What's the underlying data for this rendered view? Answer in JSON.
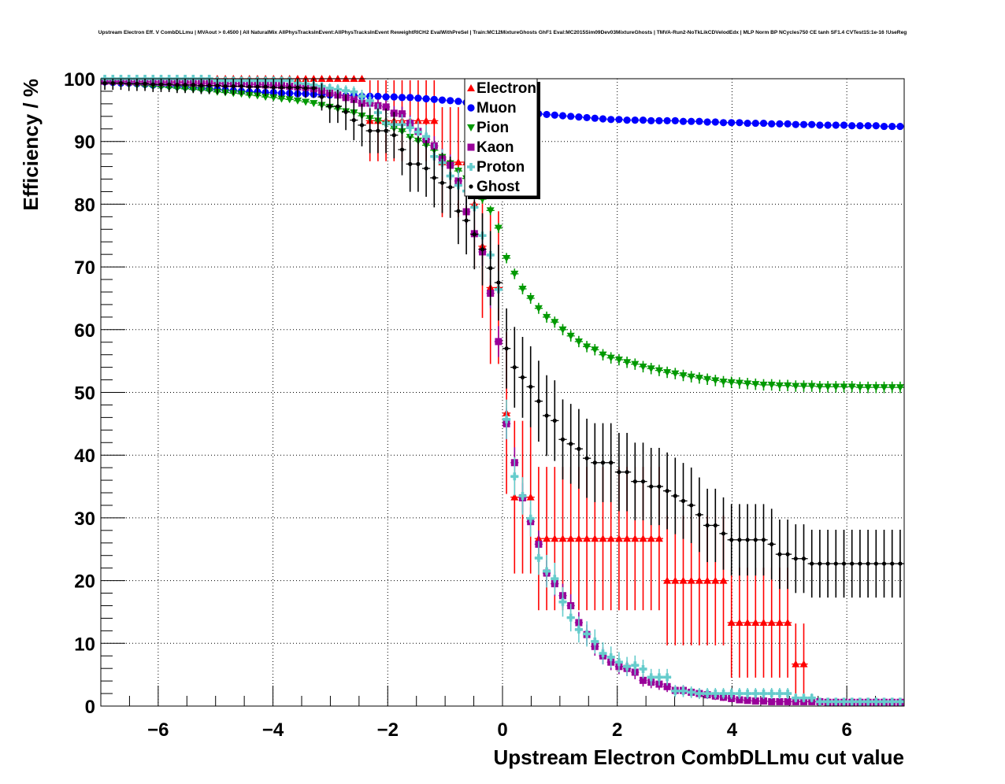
{
  "chart_data": {
    "type": "scatter",
    "title": "Upstream Electron Eff. V CombDLLmu | MVAout > 0.4500 | All NaturalMix AllPhysTracksInEvent:AllPhysTracksInEvent ReweightRICH2 EvalWithPreSel | Train:MC12MixtureGhosts GhF1 Eval:MC2015Sim09Dev03MixtureGhosts | TMVA-Run2-NoTkLikCDVelodEdx | MLP Norm BP NCycles750 CE tanh SF1.4 CVTest15:1e-16 !UseReg",
    "xlabel": "Upstream Electron CombDLLmu cut value",
    "ylabel": "Efficiency / %",
    "xlim": [
      -7,
      7
    ],
    "ylim": [
      0,
      100
    ],
    "x_bins": {
      "start": -7,
      "width": 0.14,
      "count": 100
    },
    "xticks": [
      {
        "v": -6,
        "label": "−6"
      },
      {
        "v": -4,
        "label": "−4"
      },
      {
        "v": -2,
        "label": "−2"
      },
      {
        "v": 0,
        "label": "0"
      },
      {
        "v": 2,
        "label": "2"
      },
      {
        "v": 4,
        "label": "4"
      },
      {
        "v": 6,
        "label": "6"
      }
    ],
    "yticks": [
      {
        "v": 0,
        "label": "0"
      },
      {
        "v": 10,
        "label": "10"
      },
      {
        "v": 20,
        "label": "20"
      },
      {
        "v": 30,
        "label": "30"
      },
      {
        "v": 40,
        "label": "40"
      },
      {
        "v": 50,
        "label": "50"
      },
      {
        "v": 60,
        "label": "60"
      },
      {
        "v": 70,
        "label": "70"
      },
      {
        "v": 80,
        "label": "80"
      },
      {
        "v": 90,
        "label": "90"
      },
      {
        "v": 100,
        "label": "100"
      }
    ],
    "grid": true,
    "legend_position": "top-center",
    "series": [
      {
        "name": "Electron",
        "color": "#ff0000",
        "marker": "triangle-up",
        "values": [
          100,
          100,
          100,
          100,
          100,
          100,
          100,
          100,
          100,
          100,
          100,
          100,
          100,
          100,
          100,
          100,
          100,
          100,
          100,
          100,
          100,
          100,
          100,
          100,
          100,
          100,
          100,
          100,
          100,
          100,
          100,
          100,
          100,
          93.3,
          93.3,
          93.3,
          93.3,
          93.3,
          93.3,
          93.3,
          93.3,
          93.3,
          86.7,
          86.7,
          86.7,
          86.7,
          80,
          73.3,
          66.7,
          66.7,
          46.7,
          33.3,
          33.3,
          33.3,
          26.7,
          26.7,
          26.7,
          26.7,
          26.7,
          26.7,
          26.7,
          26.7,
          26.7,
          26.7,
          26.7,
          26.7,
          26.7,
          26.7,
          26.7,
          26.7,
          20,
          20,
          20,
          20,
          20,
          20,
          20,
          20,
          13.3,
          13.3,
          13.3,
          13.3,
          13.3,
          13.3,
          13.3,
          13.3,
          6.7,
          6.7,
          null,
          null,
          null,
          null,
          null,
          null,
          null,
          null,
          null,
          null,
          null,
          null
        ]
      },
      {
        "name": "Muon",
        "color": "#0000ff",
        "marker": "circle",
        "values": [
          99.5,
          99.4,
          99.3,
          99.3,
          99.2,
          99.1,
          99.0,
          99.0,
          98.9,
          98.8,
          98.7,
          98.6,
          98.5,
          98.4,
          98.3,
          98.2,
          98.1,
          98.0,
          97.9,
          97.9,
          97.8,
          97.8,
          97.7,
          97.7,
          97.6,
          97.6,
          97.5,
          97.5,
          97.4,
          97.4,
          97.3,
          97.3,
          97.2,
          97.2,
          97.2,
          97.1,
          97.1,
          97.0,
          97.0,
          96.9,
          96.8,
          96.7,
          96.6,
          96.5,
          96.4,
          96.2,
          96.0,
          95.8,
          95.5,
          95.2,
          94.9,
          94.7,
          94.6,
          94.5,
          94.4,
          94.3,
          94.2,
          94.1,
          94.0,
          93.9,
          93.8,
          93.7,
          93.6,
          93.5,
          93.5,
          93.4,
          93.4,
          93.4,
          93.3,
          93.3,
          93.3,
          93.3,
          93.2,
          93.2,
          93.2,
          93.1,
          93.1,
          93.0,
          93.0,
          93.0,
          92.9,
          92.9,
          92.9,
          92.8,
          92.8,
          92.8,
          92.7,
          92.7,
          92.7,
          92.6,
          92.6,
          92.6,
          92.6,
          92.5,
          92.5,
          92.5,
          92.5,
          92.4,
          92.4,
          92.4
        ]
      },
      {
        "name": "Pion",
        "color": "#009900",
        "marker": "triangle-down",
        "values": [
          99.4,
          99.3,
          99.2,
          99.1,
          99.0,
          98.9,
          98.8,
          98.7,
          98.6,
          98.5,
          98.4,
          98.3,
          98.2,
          98.1,
          97.9,
          97.8,
          97.7,
          97.6,
          97.4,
          97.3,
          97.1,
          97.0,
          96.8,
          96.7,
          96.5,
          96.3,
          96.1,
          95.8,
          95.5,
          95.2,
          94.8,
          94.6,
          94.1,
          93.7,
          93.3,
          92.7,
          92.1,
          91.6,
          90.7,
          90.1,
          89.4,
          88.6,
          87.5,
          86.5,
          85.3,
          84.1,
          82.4,
          80.8,
          79.0,
          76.2,
          71.4,
          68.9,
          66.5,
          65.0,
          63.4,
          62.0,
          61.2,
          60.0,
          59.0,
          58.1,
          57.3,
          56.8,
          56.0,
          55.5,
          55.2,
          54.8,
          54.5,
          54.1,
          53.8,
          53.5,
          53.2,
          53.0,
          52.7,
          52.5,
          52.3,
          52.1,
          51.9,
          51.7,
          51.6,
          51.5,
          51.4,
          51.3,
          51.2,
          51.2,
          51.1,
          51.1,
          51.0,
          51.0,
          51.0,
          50.9,
          50.9,
          50.9,
          50.9,
          50.9,
          50.8,
          50.8,
          50.8,
          50.8,
          50.8,
          50.8
        ]
      },
      {
        "name": "Kaon",
        "color": "#990099",
        "marker": "square",
        "values": [
          99.6,
          99.6,
          99.6,
          99.5,
          99.5,
          99.5,
          99.5,
          99.4,
          99.4,
          99.4,
          99.4,
          99.3,
          99.3,
          99.3,
          99.3,
          99.2,
          99.2,
          99.2,
          99.1,
          99.1,
          99.0,
          99.0,
          98.9,
          98.8,
          98.7,
          98.6,
          98.4,
          98.1,
          97.7,
          97.4,
          97.0,
          96.7,
          96.1,
          96.1,
          95.7,
          95.5,
          94.5,
          94.4,
          92.9,
          91.6,
          90.3,
          89.3,
          87.2,
          86.2,
          83.7,
          78.8,
          75.3,
          72.4,
          65.8,
          58.1,
          45.0,
          38.8,
          33.2,
          29.4,
          25.8,
          21.2,
          19.5,
          17.6,
          16.0,
          13.3,
          11.4,
          9.5,
          8.0,
          7.0,
          6.3,
          6.0,
          5.4,
          4.1,
          3.8,
          3.5,
          3.1,
          2.5,
          2.5,
          2.2,
          2.0,
          1.8,
          1.6,
          1.4,
          1.2,
          1.0,
          0.9,
          0.8,
          0.8,
          0.7,
          0.7,
          0.7,
          0.7,
          0.7,
          0.7,
          0.7,
          0.6,
          0.6,
          0.6,
          0.6,
          0.6,
          0.6,
          0.6,
          0.6,
          0.6,
          0.6
        ]
      },
      {
        "name": "Proton",
        "color": "#66cccc",
        "marker": "cross",
        "values": [
          100,
          100,
          100,
          100,
          100,
          100,
          100,
          100,
          100,
          100,
          100,
          100,
          100,
          100,
          99.7,
          99.7,
          99.7,
          99.7,
          99.7,
          99.7,
          99.7,
          99.7,
          99.7,
          99.7,
          99.3,
          99.2,
          99.0,
          98.8,
          98.5,
          98.3,
          98.1,
          97.9,
          97.2,
          96.5,
          94.6,
          92.9,
          92.7,
          92.7,
          92.2,
          91.5,
          90.8,
          87.6,
          86.6,
          84.5,
          83.0,
          82.1,
          79.5,
          75.0,
          71.9,
          66.4,
          45.7,
          36.6,
          33.5,
          29.9,
          23.6,
          21.5,
          20.3,
          16.6,
          14.1,
          12.2,
          11.5,
          10.3,
          8.4,
          7.8,
          7.0,
          6.3,
          6.5,
          5.9,
          4.6,
          4.6,
          4.6,
          2.4,
          2.4,
          2.2,
          2.0,
          2.0,
          2.0,
          2.0,
          2.0,
          2.0,
          2.0,
          2.0,
          2.0,
          2.0,
          2.0,
          2.0,
          1.3,
          1.3,
          1.3,
          0.7,
          0.7,
          0.7,
          0.7,
          0.7,
          0.7,
          0.7,
          0.7,
          0.7,
          0.7,
          0.7
        ]
      },
      {
        "name": "Ghost",
        "color": "#000000",
        "marker": "dot",
        "values": [
          99.3,
          99.3,
          99.3,
          99.2,
          99.2,
          99.2,
          99.1,
          99.1,
          99.1,
          99.0,
          99.0,
          99.0,
          98.9,
          98.9,
          98.9,
          98.8,
          98.8,
          98.8,
          98.7,
          98.7,
          98.7,
          98.6,
          98.6,
          98.6,
          98.6,
          98.5,
          98.5,
          97.1,
          95.6,
          95.6,
          94.7,
          93.4,
          92.6,
          91.7,
          91.7,
          91.7,
          91.0,
          88.7,
          86.4,
          86.4,
          85.7,
          84.2,
          83.4,
          82.7,
          78.9,
          77.4,
          75.2,
          72.8,
          69.8,
          67.5,
          57.0,
          54.0,
          52.4,
          50.9,
          48.6,
          46.3,
          45.5,
          42.5,
          41.8,
          41.0,
          39.5,
          38.8,
          38.8,
          38.8,
          37.3,
          37.3,
          35.8,
          35.8,
          35.0,
          35.0,
          34.3,
          33.5,
          32.7,
          32.0,
          30.5,
          28.8,
          28.8,
          27.5,
          26.5,
          26.5,
          26.5,
          26.5,
          26.5,
          25.8,
          24.2,
          24.2,
          23.5,
          23.5,
          22.7,
          22.7,
          22.7,
          22.7,
          22.7,
          22.7,
          22.7,
          22.7,
          22.7,
          22.7,
          22.7,
          22.7
        ]
      }
    ]
  }
}
